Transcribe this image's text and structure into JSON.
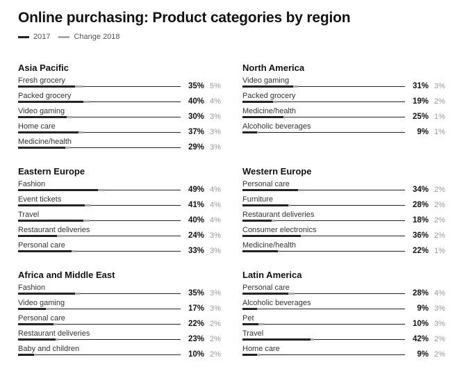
{
  "title": "Online purchasing: Product categories by region",
  "legend": {
    "series_2017": "2017",
    "series_change": "Change 2018"
  },
  "colors": {
    "bar_2017": "#222222",
    "bar_change": "#aaaaaa",
    "change_text": "#999999"
  },
  "chart_data": {
    "type": "bar",
    "title": "Online purchasing: Product categories by region",
    "series_names": [
      "2017",
      "Change 2018"
    ],
    "regions": [
      {
        "name": "Asia Pacific",
        "items": [
          {
            "category": "Fresh grocery",
            "value_2017": 35,
            "change_2018": 5,
            "value_text": "35%",
            "change_text": "5%"
          },
          {
            "category": "Packed grocery",
            "value_2017": 40,
            "change_2018": 4,
            "value_text": "40%",
            "change_text": "4%"
          },
          {
            "category": "Video gaming",
            "value_2017": 30,
            "change_2018": 3,
            "value_text": "30%",
            "change_text": "3%"
          },
          {
            "category": "Home care",
            "value_2017": 37,
            "change_2018": 3,
            "value_text": "37%",
            "change_text": "3%"
          },
          {
            "category": "Medicine/health",
            "value_2017": 29,
            "change_2018": 3,
            "value_text": "29%",
            "change_text": "3%"
          }
        ]
      },
      {
        "name": "North America",
        "items": [
          {
            "category": "Video gaming",
            "value_2017": 31,
            "change_2018": 3,
            "value_text": "31%",
            "change_text": "3%"
          },
          {
            "category": "Packed grocery",
            "value_2017": 19,
            "change_2018": 2,
            "value_text": "19%",
            "change_text": "2%"
          },
          {
            "category": "Medicine/health",
            "value_2017": 25,
            "change_2018": 1,
            "value_text": "25%",
            "change_text": "1%"
          },
          {
            "category": "Alcoholic beverages",
            "value_2017": 9,
            "change_2018": 1,
            "value_text": "9%",
            "change_text": "1%"
          }
        ]
      },
      {
        "name": "Eastern Europe",
        "items": [
          {
            "category": "Fashion",
            "value_2017": 49,
            "change_2018": 4,
            "value_text": "49%",
            "change_text": "4%"
          },
          {
            "category": "Event tickets",
            "value_2017": 41,
            "change_2018": 4,
            "value_text": "41%",
            "change_text": "4%"
          },
          {
            "category": "Travel",
            "value_2017": 40,
            "change_2018": 4,
            "value_text": "40%",
            "change_text": "4%"
          },
          {
            "category": "Restaurant deliveries",
            "value_2017": 24,
            "change_2018": 3,
            "value_text": "24%",
            "change_text": "3%"
          },
          {
            "category": "Personal care",
            "value_2017": 33,
            "change_2018": 3,
            "value_text": "33%",
            "change_text": "3%"
          }
        ]
      },
      {
        "name": "Western Europe",
        "items": [
          {
            "category": "Personal care",
            "value_2017": 34,
            "change_2018": 2,
            "value_text": "34%",
            "change_text": "2%"
          },
          {
            "category": "Furniture",
            "value_2017": 28,
            "change_2018": 2,
            "value_text": "28%",
            "change_text": "2%"
          },
          {
            "category": "Restaurant deliveries",
            "value_2017": 18,
            "change_2018": 2,
            "value_text": "18%",
            "change_text": "2%"
          },
          {
            "category": "Consumer electronics",
            "value_2017": 36,
            "change_2018": 2,
            "value_text": "36%",
            "change_text": "2%"
          },
          {
            "category": "Medicine/health",
            "value_2017": 22,
            "change_2018": 1,
            "value_text": "22%",
            "change_text": "1%"
          }
        ]
      },
      {
        "name": "Africa and Middle East",
        "items": [
          {
            "category": "Fashion",
            "value_2017": 35,
            "change_2018": 3,
            "value_text": "35%",
            "change_text": "3%"
          },
          {
            "category": "Video gaming",
            "value_2017": 17,
            "change_2018": 3,
            "value_text": "17%",
            "change_text": "3%"
          },
          {
            "category": "Personal care",
            "value_2017": 22,
            "change_2018": 2,
            "value_text": "22%",
            "change_text": "2%"
          },
          {
            "category": "Restaurant deliveries",
            "value_2017": 23,
            "change_2018": 2,
            "value_text": "23%",
            "change_text": "2%"
          },
          {
            "category": "Baby and children",
            "value_2017": 10,
            "change_2018": 2,
            "value_text": "10%",
            "change_text": "2%"
          }
        ]
      },
      {
        "name": "Latin America",
        "items": [
          {
            "category": "Personal care",
            "value_2017": 28,
            "change_2018": 4,
            "value_text": "28%",
            "change_text": "4%"
          },
          {
            "category": "Alcoholic beverages",
            "value_2017": 9,
            "change_2018": 3,
            "value_text": "9%",
            "change_text": "3%"
          },
          {
            "category": "Pet",
            "value_2017": 10,
            "change_2018": 3,
            "value_text": "10%",
            "change_text": "3%"
          },
          {
            "category": "Travel",
            "value_2017": 42,
            "change_2018": 2,
            "value_text": "42%",
            "change_text": "2%"
          },
          {
            "category": "Home care",
            "value_2017": 9,
            "change_2018": 2,
            "value_text": "9%",
            "change_text": "2%"
          }
        ]
      }
    ]
  }
}
